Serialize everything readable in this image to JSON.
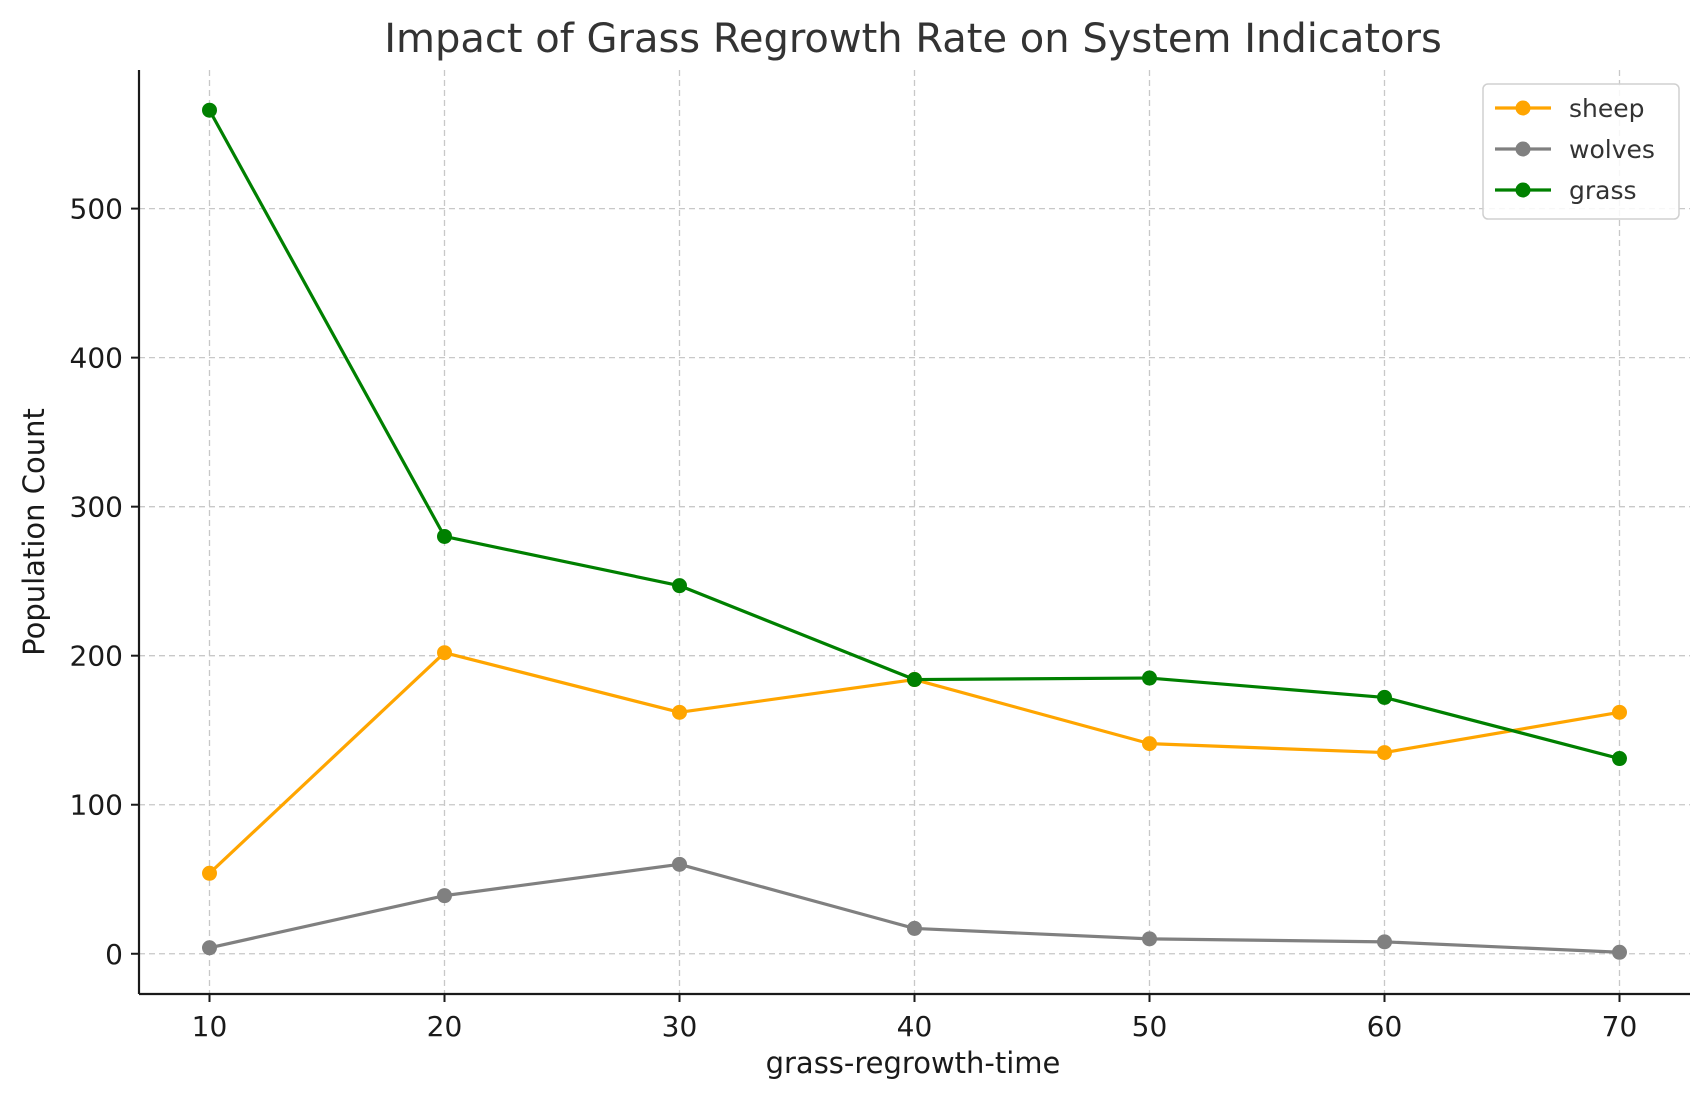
{
  "chart_data": {
    "type": "line",
    "title": "Impact of Grass Regrowth Rate on System Indicators",
    "xlabel": "grass-regrowth-time",
    "ylabel": "Population Count",
    "x": [
      10,
      20,
      30,
      40,
      50,
      60,
      70
    ],
    "xlim": [
      7,
      73
    ],
    "ylim": [
      -27,
      593
    ],
    "xticks": [
      10,
      20,
      30,
      40,
      50,
      60,
      70
    ],
    "yticks": [
      0,
      100,
      200,
      300,
      400,
      500
    ],
    "grid": true,
    "legend_position": "top-right",
    "series": [
      {
        "name": "sheep",
        "color": "#FFA500",
        "values": [
          54,
          202,
          162,
          184,
          141,
          135,
          162
        ]
      },
      {
        "name": "wolves",
        "color": "#808080",
        "values": [
          4,
          39,
          60,
          17,
          10,
          8,
          1
        ]
      },
      {
        "name": "grass",
        "color": "#008000",
        "values": [
          566,
          280,
          247,
          184,
          185,
          172,
          131
        ]
      }
    ]
  }
}
